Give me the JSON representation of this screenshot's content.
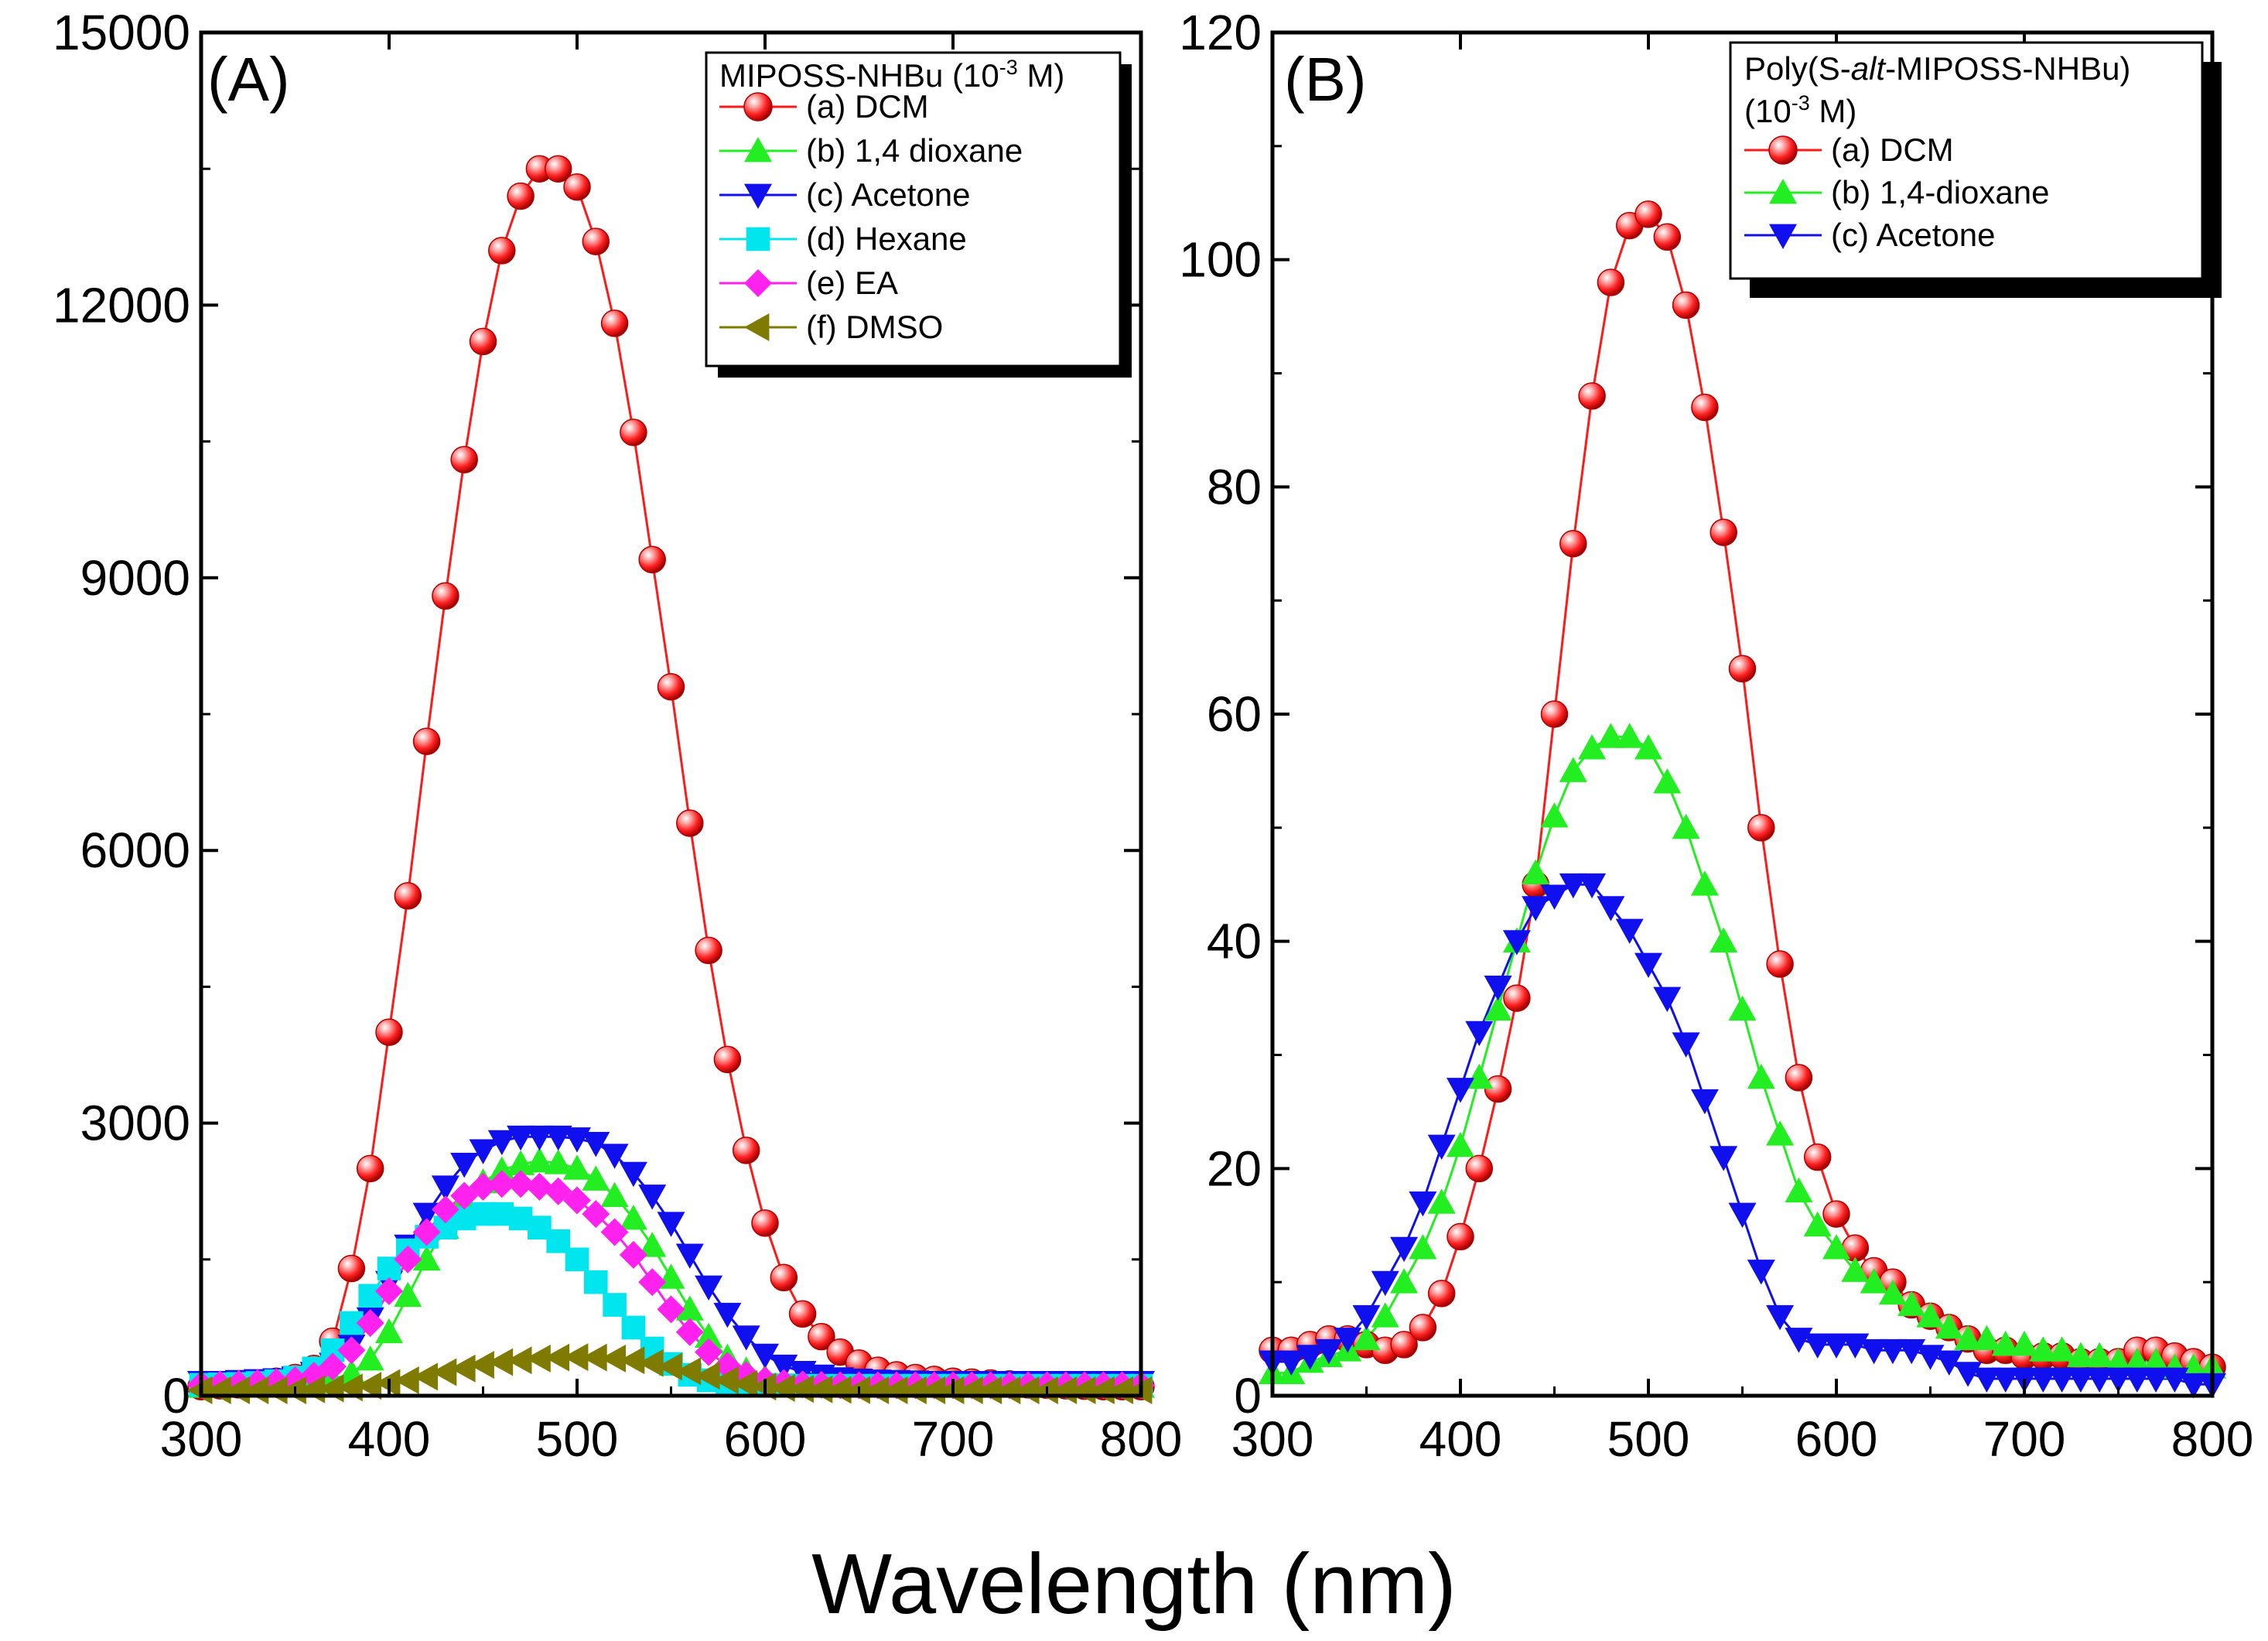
{
  "chart_data": [
    {
      "type": "line",
      "panel_label": "(A)",
      "xlim": [
        300,
        800
      ],
      "ylim": [
        0,
        15000
      ],
      "xticks": [
        "300",
        "400",
        "500",
        "600",
        "700",
        "800"
      ],
      "yticks": [
        "0",
        "3000",
        "6000",
        "9000",
        "12000",
        "15000"
      ],
      "xlabel": "Wavelength (nm)",
      "ylabel": "",
      "legend": {
        "title_main": "MIPOSS-NHBu (10",
        "title_exp": "-3",
        "title_tail": " M)",
        "position": "top-right"
      },
      "x": [
        300,
        310,
        320,
        330,
        340,
        350,
        360,
        370,
        380,
        390,
        400,
        410,
        420,
        430,
        440,
        450,
        460,
        470,
        480,
        490,
        500,
        510,
        520,
        530,
        540,
        550,
        560,
        570,
        580,
        590,
        600,
        610,
        620,
        630,
        640,
        650,
        660,
        670,
        680,
        690,
        700,
        710,
        720,
        730,
        740,
        750,
        760,
        770,
        780,
        790,
        800
      ],
      "series": [
        {
          "name": "(a) DCM",
          "color": "#ff1a1a",
          "marker": "sphere",
          "values": [
            100,
            110,
            120,
            140,
            160,
            200,
            300,
            600,
            1400,
            2500,
            4000,
            5500,
            7200,
            8800,
            10300,
            11600,
            12600,
            13200,
            13500,
            13500,
            13300,
            12700,
            11800,
            10600,
            9200,
            7800,
            6300,
            4900,
            3700,
            2700,
            1900,
            1300,
            900,
            650,
            480,
            360,
            280,
            230,
            200,
            180,
            160,
            150,
            140,
            130,
            120,
            115,
            110,
            105,
            100,
            100,
            100
          ]
        },
        {
          "name": "(b) 1,4 dioxane",
          "color": "#22ee22",
          "marker": "triangle-up",
          "values": [
            100,
            100,
            110,
            110,
            120,
            130,
            150,
            180,
            250,
            400,
            700,
            1100,
            1500,
            1850,
            2150,
            2350,
            2480,
            2550,
            2580,
            2560,
            2500,
            2380,
            2200,
            1950,
            1650,
            1300,
            950,
            650,
            420,
            280,
            200,
            160,
            140,
            130,
            120,
            115,
            110,
            110,
            105,
            100,
            100,
            100,
            100,
            100,
            100,
            100,
            100,
            100,
            100,
            100,
            100
          ]
        },
        {
          "name": "(c) Acetone",
          "color": "#1010ee",
          "marker": "triangle-down",
          "values": [
            150,
            150,
            160,
            170,
            180,
            200,
            250,
            350,
            550,
            850,
            1250,
            1650,
            2000,
            2300,
            2550,
            2700,
            2800,
            2850,
            2850,
            2850,
            2830,
            2780,
            2650,
            2450,
            2200,
            1900,
            1550,
            1200,
            900,
            650,
            450,
            330,
            260,
            220,
            190,
            175,
            165,
            160,
            155,
            150,
            150,
            150,
            150,
            150,
            150,
            150,
            150,
            150,
            150,
            150,
            150
          ]
        },
        {
          "name": "(d) Hexane",
          "color": "#00e5ee",
          "marker": "square",
          "values": [
            120,
            125,
            130,
            140,
            160,
            200,
            300,
            500,
            800,
            1100,
            1400,
            1600,
            1750,
            1850,
            1950,
            2000,
            2000,
            1950,
            1850,
            1700,
            1500,
            1250,
            1000,
            750,
            520,
            350,
            230,
            170,
            140,
            125,
            120,
            115,
            110,
            110,
            110,
            110,
            110,
            110,
            110,
            110,
            110,
            110,
            110,
            110,
            110,
            110,
            110,
            110,
            110,
            110,
            110
          ]
        },
        {
          "name": "(e) EA",
          "color": "#ff22ee",
          "marker": "diamond",
          "values": [
            120,
            125,
            130,
            140,
            150,
            170,
            220,
            320,
            500,
            800,
            1150,
            1500,
            1800,
            2050,
            2200,
            2300,
            2330,
            2330,
            2300,
            2250,
            2150,
            2000,
            1800,
            1550,
            1250,
            950,
            700,
            480,
            330,
            230,
            170,
            140,
            125,
            120,
            115,
            115,
            115,
            115,
            115,
            115,
            115,
            115,
            115,
            115,
            115,
            115,
            115,
            115,
            115,
            115,
            115
          ]
        },
        {
          "name": "(f)  DMSO",
          "color": "#7f7a00",
          "marker": "triangle-left",
          "values": [
            60,
            60,
            60,
            60,
            60,
            60,
            70,
            80,
            90,
            110,
            140,
            170,
            210,
            260,
            300,
            340,
            370,
            390,
            410,
            420,
            425,
            420,
            410,
            390,
            360,
            320,
            270,
            220,
            170,
            130,
            100,
            85,
            75,
            70,
            65,
            62,
            60,
            60,
            60,
            60,
            60,
            60,
            60,
            60,
            60,
            60,
            60,
            60,
            60,
            60,
            60
          ]
        }
      ]
    },
    {
      "type": "line",
      "panel_label": "(B)",
      "xlim": [
        300,
        800
      ],
      "ylim": [
        0,
        120
      ],
      "xticks": [
        "300",
        "400",
        "500",
        "600",
        "700",
        "800"
      ],
      "yticks": [
        "0",
        "20",
        "40",
        "60",
        "80",
        "100",
        "120"
      ],
      "xlabel": "Wavelength (nm)",
      "ylabel": "",
      "legend": {
        "title_line1_a": "Poly(S-",
        "title_line1_b": "alt",
        "title_line1_c": "-MIPOSS-NHBu)",
        "title_line2_a": "(10",
        "title_line2_exp": "-3",
        "title_line2_c": " M)",
        "position": "top-right"
      },
      "x": [
        300,
        310,
        320,
        330,
        340,
        350,
        360,
        370,
        380,
        390,
        400,
        410,
        420,
        430,
        440,
        450,
        460,
        470,
        480,
        490,
        500,
        510,
        520,
        530,
        540,
        550,
        560,
        570,
        580,
        590,
        600,
        610,
        620,
        630,
        640,
        650,
        660,
        670,
        680,
        690,
        700,
        710,
        720,
        730,
        740,
        750,
        760,
        770,
        780,
        790,
        800
      ],
      "series": [
        {
          "name": "(a) DCM",
          "color": "#ff1a1a",
          "marker": "sphere",
          "values": [
            4,
            4,
            4.5,
            5,
            5,
            4.5,
            4,
            4.5,
            6,
            9,
            14,
            20,
            27,
            35,
            45,
            60,
            75,
            88,
            98,
            103,
            104,
            102,
            96,
            87,
            76,
            64,
            50,
            38,
            28,
            21,
            16,
            13,
            11,
            10,
            8,
            7,
            6,
            5,
            4,
            4,
            3.5,
            3.5,
            3.5,
            3,
            3,
            3,
            4,
            4,
            3.5,
            3,
            2.5
          ]
        },
        {
          "name": "(b) 1,4-dioxane",
          "color": "#22ee22",
          "marker": "triangle-up",
          "values": [
            2,
            2,
            3,
            3.5,
            4,
            5,
            7,
            10,
            13,
            17,
            22,
            28,
            34,
            40,
            46,
            51,
            55,
            57,
            58,
            58,
            57,
            54,
            50,
            45,
            40,
            34,
            28,
            23,
            18,
            15,
            13,
            11,
            10,
            9,
            8,
            7,
            6,
            5,
            5,
            4.5,
            4.5,
            4,
            4,
            3.5,
            3.5,
            3,
            3,
            3,
            2.5,
            2.5,
            2.5
          ]
        },
        {
          "name": "(c) Acetone",
          "color": "#1010ee",
          "marker": "triangle-down",
          "values": [
            3,
            3,
            3.5,
            4,
            5,
            7,
            10,
            13,
            17,
            22,
            27,
            32,
            36,
            40,
            43,
            44,
            45,
            45,
            43,
            41,
            38,
            35,
            31,
            26,
            21,
            16,
            11,
            7,
            5,
            4.5,
            4.5,
            4.5,
            4,
            4,
            4,
            3.5,
            3,
            2,
            1.5,
            1.5,
            1.5,
            1.5,
            1.5,
            1.5,
            1.5,
            1.5,
            1.5,
            1.5,
            1.5,
            1,
            1
          ]
        }
      ]
    }
  ]
}
